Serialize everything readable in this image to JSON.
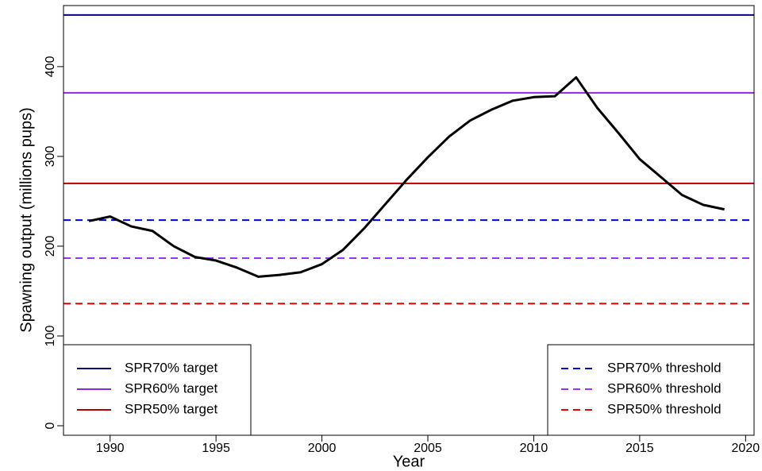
{
  "chart_data": {
    "type": "line",
    "x_label": "Year",
    "y_label": "Spawning output (millions pups)",
    "x": [
      1989,
      1990,
      1991,
      1992,
      1993,
      1994,
      1995,
      1996,
      1997,
      1998,
      1999,
      2000,
      2001,
      2002,
      2003,
      2004,
      2005,
      2006,
      2007,
      2008,
      2009,
      2010,
      2011,
      2012,
      2013,
      2014,
      2015,
      2016,
      2017,
      2018,
      2019
    ],
    "values": [
      228,
      233,
      222,
      217,
      200,
      188,
      184,
      176,
      166,
      168,
      171,
      180,
      196,
      220,
      247,
      274,
      299,
      322,
      340,
      352,
      362,
      366,
      367,
      388,
      354,
      326,
      297,
      277,
      257,
      246,
      241
    ],
    "color": "#000000",
    "reference_lines": [
      {
        "name": "SPR70% target",
        "value": 457.5,
        "color": "#00008b",
        "dashed": false,
        "legend": "bottom-left"
      },
      {
        "name": "SPR60% target",
        "value": 370.8,
        "color": "#8a2be2",
        "dashed": false,
        "legend": "bottom-left"
      },
      {
        "name": "SPR50% target",
        "value": 270,
        "color": "#b20000",
        "dashed": false,
        "legend": "bottom-left"
      },
      {
        "name": "SPR70% threshold",
        "value": 229,
        "color": "#0000ee",
        "dashed": true,
        "legend": "bottom-right"
      },
      {
        "name": "SPR60% threshold",
        "value": 186.7,
        "color": "#9b30ff",
        "dashed": true,
        "legend": "bottom-right"
      },
      {
        "name": "SPR50% threshold",
        "value": 136,
        "color": "#ee0000",
        "dashed": true,
        "legend": "bottom-right"
      }
    ],
    "xlim": [
      1987.8,
      2020.4
    ],
    "xticks": [
      1990,
      1995,
      2000,
      2005,
      2010,
      2015,
      2020
    ],
    "ylim": [
      -10.6,
      468
    ],
    "yticks": [
      0,
      100,
      200,
      300,
      400
    ]
  }
}
